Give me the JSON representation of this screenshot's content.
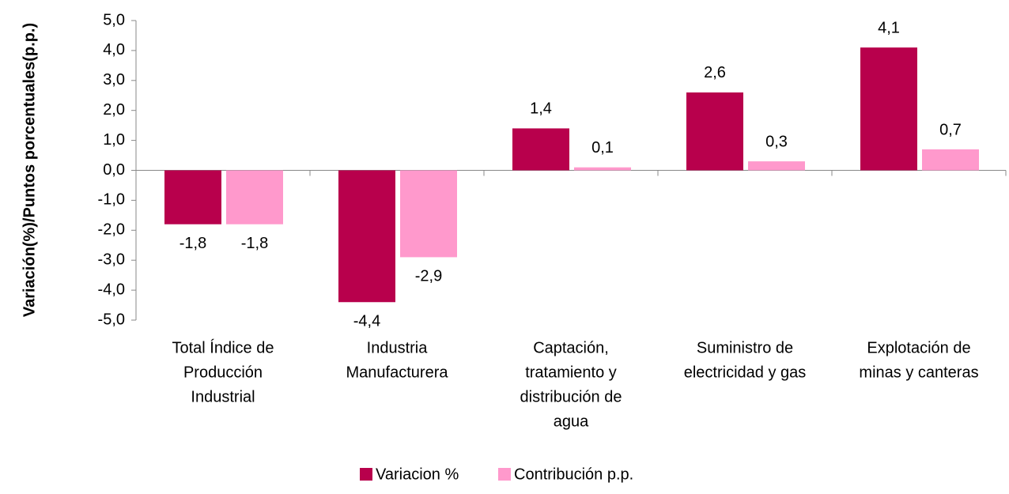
{
  "chart_data": {
    "type": "bar",
    "y_label": "Variación(%)/Puntos porcentuales(p.p.)",
    "categories": [
      [
        "Total Índice de",
        "Producción",
        "Industrial"
      ],
      [
        "Industria",
        "Manufacturera"
      ],
      [
        "Captación,",
        "tratamiento y",
        "distribución de",
        "agua"
      ],
      [
        "Suministro de",
        "electricidad y gas"
      ],
      [
        "Explotación de",
        "minas y canteras"
      ]
    ],
    "series": [
      {
        "name": "Variacion %",
        "color": "#b8004c",
        "values": [
          -1.8,
          -4.4,
          1.4,
          2.6,
          4.1
        ],
        "value_labels": [
          "-1,8",
          "-4,4",
          "1,4",
          "2,6",
          "4,1"
        ]
      },
      {
        "name": "Contribución p.p.",
        "color": "#ff99cc",
        "values": [
          -1.8,
          -2.9,
          0.1,
          0.3,
          0.7
        ],
        "value_labels": [
          "-1,8",
          "-2,9",
          "0,1",
          "0,3",
          "0,7"
        ]
      }
    ],
    "ylim": [
      -5,
      5
    ],
    "yticks": [
      {
        "value": -5,
        "label": "-5,0"
      },
      {
        "value": -4,
        "label": "-4,0"
      },
      {
        "value": -3,
        "label": "-3,0"
      },
      {
        "value": -2,
        "label": "-2,0"
      },
      {
        "value": -1,
        "label": "-1,0"
      },
      {
        "value": 0,
        "label": "0,0"
      },
      {
        "value": 1,
        "label": "1,0"
      },
      {
        "value": 2,
        "label": "2,0"
      },
      {
        "value": 3,
        "label": "3,0"
      },
      {
        "value": 4,
        "label": "4,0"
      },
      {
        "value": 5,
        "label": "5,0"
      }
    ],
    "legend": "bottom"
  }
}
